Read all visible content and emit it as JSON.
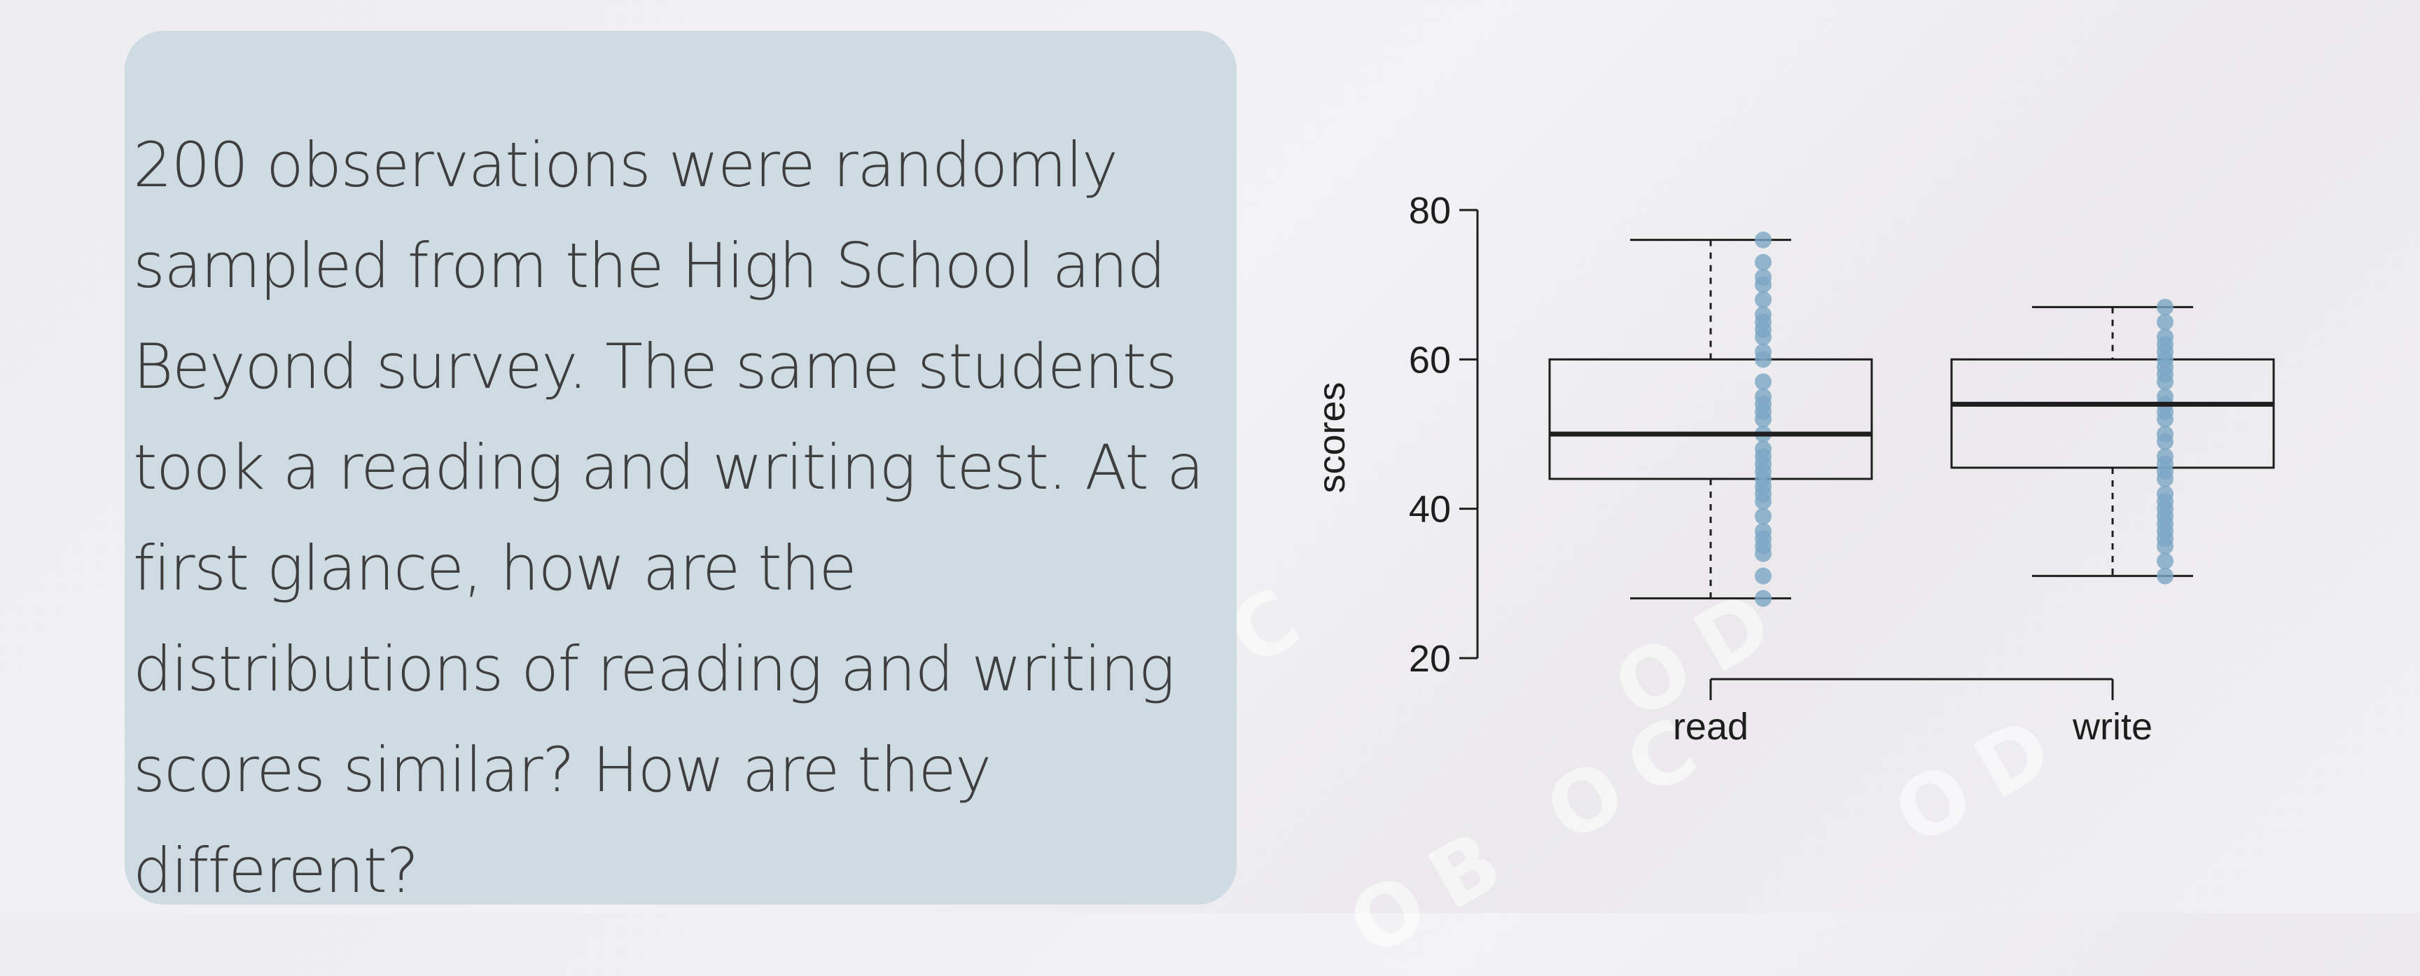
{
  "question": {
    "text": "200 observations were randomly sampled from the High School and Beyond survey. The same students took a reading and writing test. At a first glance, how are the distributions of reading and writing scores similar? How are they different?"
  },
  "colors": {
    "box_background": "#cfdbe3",
    "points": "#7aa6c4",
    "axis": "#1e1e1e"
  },
  "chart_data": {
    "type": "box",
    "title": "",
    "xlabel": "",
    "ylabel": "scores",
    "ylim": [
      20,
      80
    ],
    "yticks": [
      20,
      40,
      60,
      80
    ],
    "categories": [
      "read",
      "write"
    ],
    "series": [
      {
        "name": "read",
        "min": 28,
        "q1": 44,
        "median": 50,
        "q3": 60,
        "max": 76,
        "points": [
          28,
          31,
          34,
          35,
          36,
          37,
          39,
          41,
          42,
          43,
          44,
          45,
          46,
          47,
          48,
          50,
          52,
          53,
          54,
          55,
          57,
          60,
          61,
          63,
          64,
          65,
          66,
          68,
          70,
          71,
          73,
          76
        ]
      },
      {
        "name": "write",
        "min": 31,
        "q1": 45.5,
        "median": 54,
        "q3": 60,
        "max": 67,
        "points": [
          31,
          33,
          35,
          36,
          37,
          38,
          39,
          40,
          41,
          42,
          44,
          45,
          46,
          47,
          49,
          50,
          52,
          53,
          54,
          55,
          57,
          58,
          59,
          60,
          61,
          62,
          63,
          65,
          67
        ]
      }
    ]
  }
}
